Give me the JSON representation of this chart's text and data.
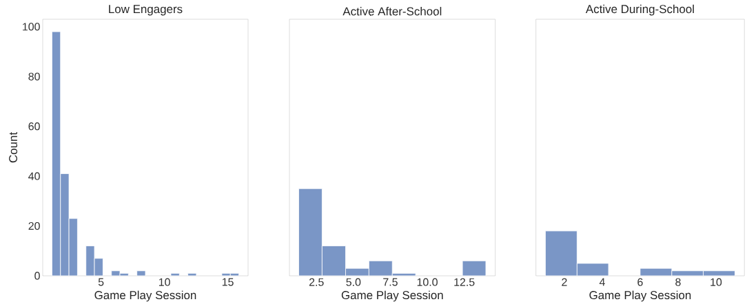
{
  "chart_data": [
    {
      "type": "histogram",
      "title": "Low Engagers",
      "xlabel": "Game Play Session",
      "ylabel": "Count",
      "color": "#7a96c6",
      "bins": [
        1.13,
        1.8,
        2.47,
        3.14,
        3.81,
        4.48,
        5.15,
        5.82,
        6.49,
        7.16,
        7.83,
        8.5,
        9.17,
        9.84,
        10.51,
        11.18,
        11.85,
        12.52,
        13.19,
        13.86,
        14.53,
        15.2,
        15.87
      ],
      "values": [
        98,
        41,
        23,
        0,
        12,
        7,
        0,
        2,
        1,
        0,
        2,
        0,
        0,
        0,
        1,
        0,
        1,
        0,
        0,
        0,
        1,
        1
      ],
      "xlim": [
        0.4,
        16.6
      ],
      "ylim": [
        0,
        103
      ],
      "xticks": [
        5,
        10,
        15
      ],
      "yticks": [
        0,
        20,
        40,
        60,
        80,
        100
      ],
      "grid": false
    },
    {
      "type": "histogram",
      "title": "Active After-School",
      "xlabel": "Game Play Session",
      "color": "#7a96c6",
      "bins": [
        1.3,
        2.88,
        4.47,
        6.05,
        7.63,
        9.21,
        10.8,
        12.38,
        13.96
      ],
      "values": [
        35,
        12,
        3,
        6,
        1,
        0,
        0,
        6
      ],
      "xlim": [
        0.67,
        14.6
      ],
      "ylim": [
        0,
        103
      ],
      "xticks": [
        2.5,
        {
          "value": 5,
          "label": "5.0"
        },
        7.5,
        {
          "value": 10,
          "label": "10.0"
        },
        12.5
      ],
      "tick_labels": "x",
      "grid": false
    },
    {
      "type": "histogram",
      "title": "Active During-School",
      "xlabel": "Game Play Session",
      "color": "#7a96c6",
      "bins": [
        1,
        2.67,
        4.33,
        6,
        7.67,
        9.33,
        11
      ],
      "values": [
        18,
        5,
        0,
        3,
        2,
        2
      ],
      "xlim": [
        0.5,
        11.5
      ],
      "ylim": [
        0,
        103
      ],
      "xticks": [
        2,
        4,
        6,
        8,
        10
      ],
      "tick_labels": "x",
      "grid": false
    }
  ]
}
